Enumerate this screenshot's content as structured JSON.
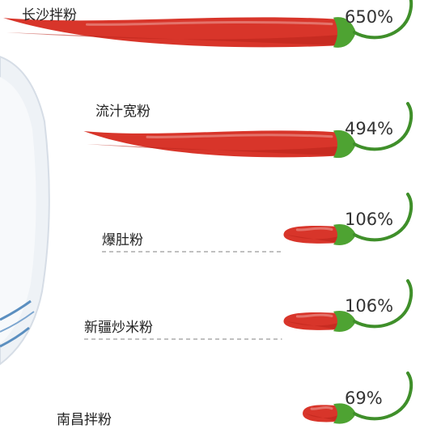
{
  "chart_data": {
    "type": "bar",
    "categories": [
      "长沙拌粉",
      "流汁宽粉",
      "爆肚粉",
      "新疆炒米粉",
      "南昌拌粉"
    ],
    "values": [
      650,
      494,
      106,
      106,
      69
    ],
    "value_labels": [
      "650%",
      "494%",
      "106%",
      "106%",
      "69%"
    ],
    "unit": "%",
    "title": "",
    "xlabel": "",
    "ylabel": "",
    "orientation": "horizontal",
    "bar_style": "chili-pepper",
    "colors": {
      "pepper": "#d8352a",
      "pepper_dark": "#b92319",
      "stem": "#3f8f2a",
      "cap": "#4ea332",
      "bowl_rim": "#dfe6ee",
      "bowl_pattern": "#5b8fc0"
    },
    "grid": false,
    "legend": "none"
  }
}
